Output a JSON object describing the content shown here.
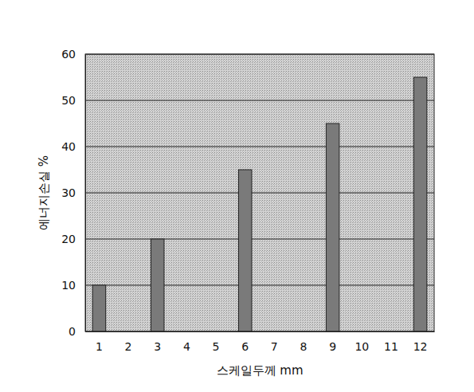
{
  "chart_data": {
    "type": "bar",
    "x_label": "스케일두께 mm",
    "y_label": "에너지손실 %",
    "categories": [
      "1",
      "2",
      "3",
      "4",
      "5",
      "6",
      "7",
      "8",
      "9",
      "10",
      "11",
      "12"
    ],
    "values": [
      10,
      null,
      20,
      null,
      null,
      35,
      null,
      null,
      45,
      null,
      null,
      55
    ],
    "color": "#7a7a7a",
    "ylim": [
      0,
      60
    ],
    "yticks": [
      0,
      10,
      20,
      30,
      40,
      50,
      60
    ],
    "grid": true
  }
}
